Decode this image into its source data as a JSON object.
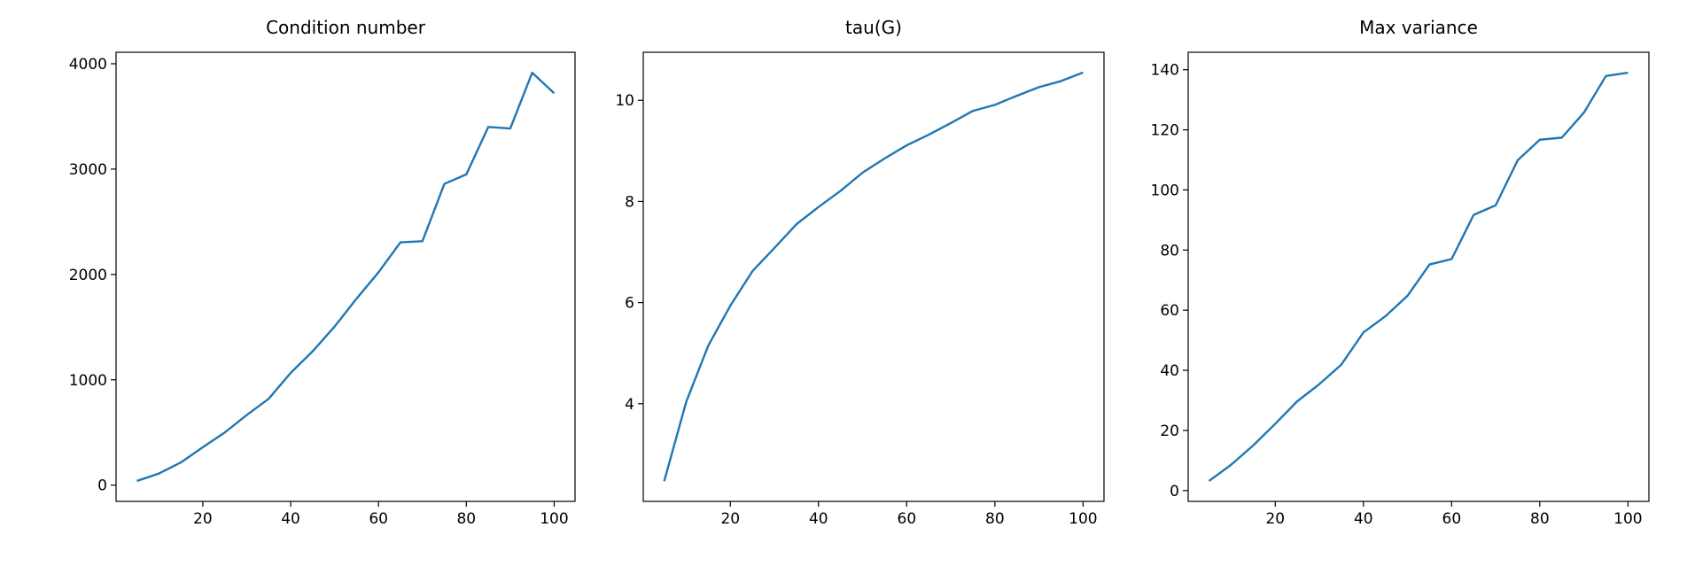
{
  "chart_data": [
    {
      "type": "line",
      "title": "Condition number",
      "color": "#1f77b4",
      "x": [
        5,
        10,
        15,
        20,
        25,
        30,
        35,
        40,
        45,
        50,
        55,
        60,
        65,
        70,
        75,
        80,
        85,
        90,
        95,
        100
      ],
      "values": [
        40,
        110,
        215,
        360,
        500,
        665,
        820,
        1065,
        1270,
        1505,
        1770,
        2020,
        2305,
        2315,
        2860,
        2950,
        3400,
        3385,
        3915,
        3720
      ],
      "xlim": [
        0.25,
        104.75
      ],
      "ylim": [
        -154,
        4109
      ],
      "xticks": [
        20,
        40,
        60,
        80,
        100
      ],
      "yticks": [
        0,
        1000,
        2000,
        3000,
        4000
      ]
    },
    {
      "type": "line",
      "title": "tau(G)",
      "color": "#1f77b4",
      "x": [
        5,
        10,
        15,
        20,
        25,
        30,
        35,
        40,
        45,
        50,
        55,
        60,
        65,
        70,
        75,
        80,
        85,
        90,
        95,
        100
      ],
      "values": [
        2.47,
        4.04,
        5.15,
        5.94,
        6.62,
        7.08,
        7.55,
        7.89,
        8.21,
        8.57,
        8.85,
        9.11,
        9.32,
        9.55,
        9.79,
        9.91,
        10.09,
        10.26,
        10.38,
        10.55
      ],
      "xlim": [
        0.25,
        104.75
      ],
      "ylim": [
        2.07,
        10.95
      ],
      "xticks": [
        20,
        40,
        60,
        80,
        100
      ],
      "yticks": [
        4,
        6,
        8,
        10
      ]
    },
    {
      "type": "line",
      "title": "Max variance",
      "color": "#1f77b4",
      "x": [
        5,
        10,
        15,
        20,
        25,
        30,
        35,
        40,
        45,
        50,
        55,
        60,
        65,
        70,
        75,
        80,
        85,
        90,
        95,
        100
      ],
      "values": [
        3.2,
        8.6,
        15,
        22.2,
        29.7,
        35.4,
        41.9,
        52.6,
        58,
        64.8,
        75.2,
        77,
        91.7,
        94.9,
        109.9,
        116.7,
        117.4,
        125.7,
        137.9,
        139
      ],
      "xlim": [
        0.25,
        104.75
      ],
      "ylim": [
        -3.6,
        145.8
      ],
      "xticks": [
        20,
        40,
        60,
        80,
        100
      ],
      "yticks": [
        0,
        20,
        40,
        60,
        80,
        100,
        120,
        140
      ]
    }
  ]
}
